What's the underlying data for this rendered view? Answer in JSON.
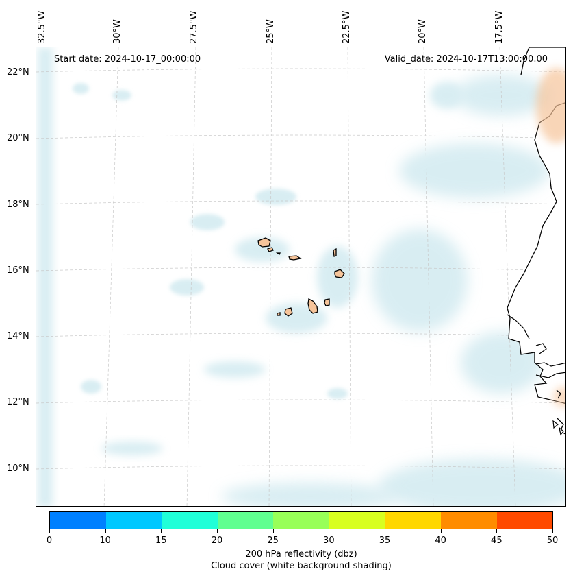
{
  "map": {
    "start_date": "Start date: 2024-10-17_00:00:00",
    "valid_date": "Valid_date: 2024-10-17T13:00:00.00",
    "lon_labels": [
      "32.5°W",
      "30°W",
      "27.5°W",
      "25°W",
      "22.5°W",
      "20°W",
      "17.5°W"
    ],
    "lat_labels": [
      "22°N",
      "20°N",
      "18°N",
      "16°N",
      "14°N",
      "12°N",
      "10°N"
    ],
    "land_color": "#f6c49a",
    "coast_color": "#000000",
    "cloud_color": "#b9dfe8"
  },
  "colorbar": {
    "ticks": [
      "0",
      "10",
      "15",
      "20",
      "25",
      "30",
      "35",
      "40",
      "45",
      "50"
    ],
    "colors": [
      "#0080ff",
      "#00c8ff",
      "#20ffd8",
      "#60ff90",
      "#98ff58",
      "#d8ff20",
      "#ffd700",
      "#ff8c00",
      "#ff4a00"
    ],
    "title_line1": "200 hPa reflectivity (dbz)",
    "title_line2": "Cloud cover (white background shading)"
  }
}
